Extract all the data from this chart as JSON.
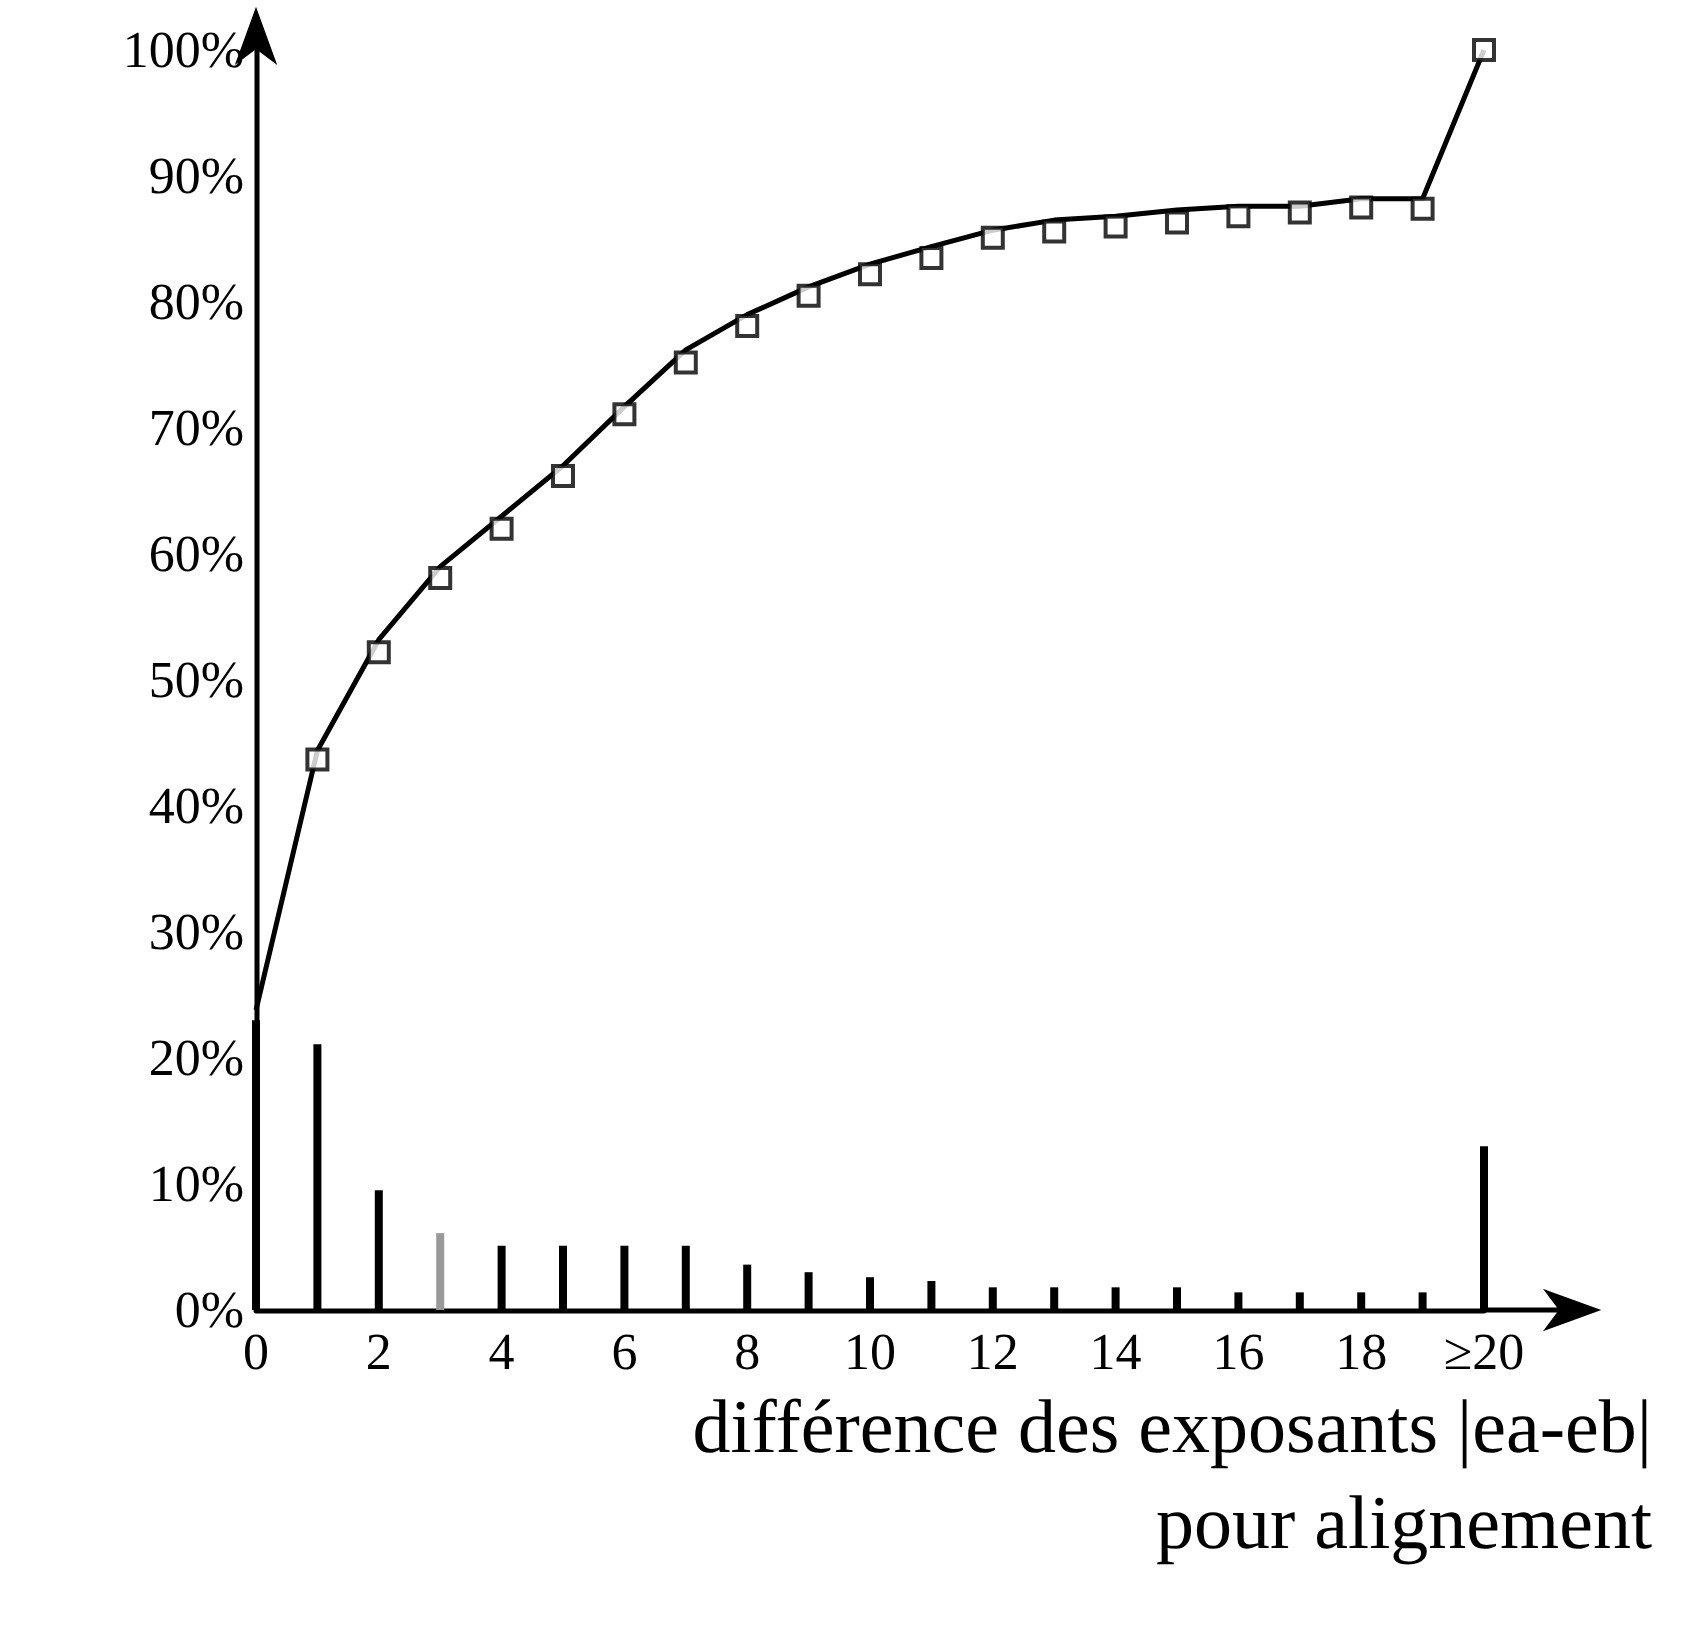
{
  "chart_data": {
    "type": "bar",
    "xlabel": "différence des exposants |ea-eb|\npour alignement",
    "categories": [
      "0",
      null,
      "2",
      null,
      "4",
      null,
      "6",
      null,
      "8",
      null,
      "10",
      null,
      "12",
      null,
      "14",
      null,
      "16",
      null,
      "18",
      null,
      "≥20"
    ],
    "ylim": [
      0,
      100
    ],
    "yticks": [
      {
        "value": 0,
        "label": "0%"
      },
      {
        "value": 10,
        "label": "10%"
      },
      {
        "value": 20,
        "label": "20%"
      },
      {
        "value": 30,
        "label": "30%"
      },
      {
        "value": 40,
        "label": "40%"
      },
      {
        "value": 50,
        "label": "50%"
      },
      {
        "value": 60,
        "label": "60%"
      },
      {
        "value": 70,
        "label": "70%"
      },
      {
        "value": 80,
        "label": "80%"
      },
      {
        "value": 90,
        "label": "90%"
      },
      {
        "value": 100,
        "label": "100%"
      }
    ],
    "grid": false,
    "series": [
      {
        "color": "#000000",
        "colors": [
          "#000000",
          "#000000",
          "#000000",
          "#999999",
          "#000000",
          "#000000",
          "#000000",
          "#000000",
          "#000000",
          "#000000",
          "#000000",
          "#000000",
          "#000000",
          "#000000",
          "#000000",
          "#000000",
          "#000000",
          "#000000",
          "#000000",
          "#000000",
          "#000000"
        ],
        "values": [
          23,
          21.1,
          9.5,
          6.1,
          5.1,
          5.1,
          5.1,
          5.1,
          3.6,
          3.0,
          2.6,
          2.3,
          1.8,
          1.8,
          1.8,
          1.8,
          1.4,
          1.4,
          1.4,
          1.4,
          13
        ]
      },
      {
        "type": "line",
        "color": "#000000",
        "marker": "none",
        "line_style": "solid",
        "values": [
          23.8,
          44.4,
          53.2,
          59,
          63,
          67,
          71.7,
          76.2,
          79,
          81.2,
          83,
          84.4,
          85.7,
          86.5,
          86.8,
          87.3,
          87.6,
          87.6,
          88.2,
          88.2,
          100
        ]
      },
      {
        "type": "scatter",
        "color": "#000000",
        "marker": "square",
        "values": [
          null,
          43.7,
          52.2,
          58.1,
          62,
          66.2,
          71.1,
          75.2,
          78.1,
          80.5,
          82.2,
          83.5,
          85.1,
          85.6,
          86,
          86.3,
          86.8,
          87.1,
          87.5,
          87.4,
          100
        ]
      }
    ]
  }
}
